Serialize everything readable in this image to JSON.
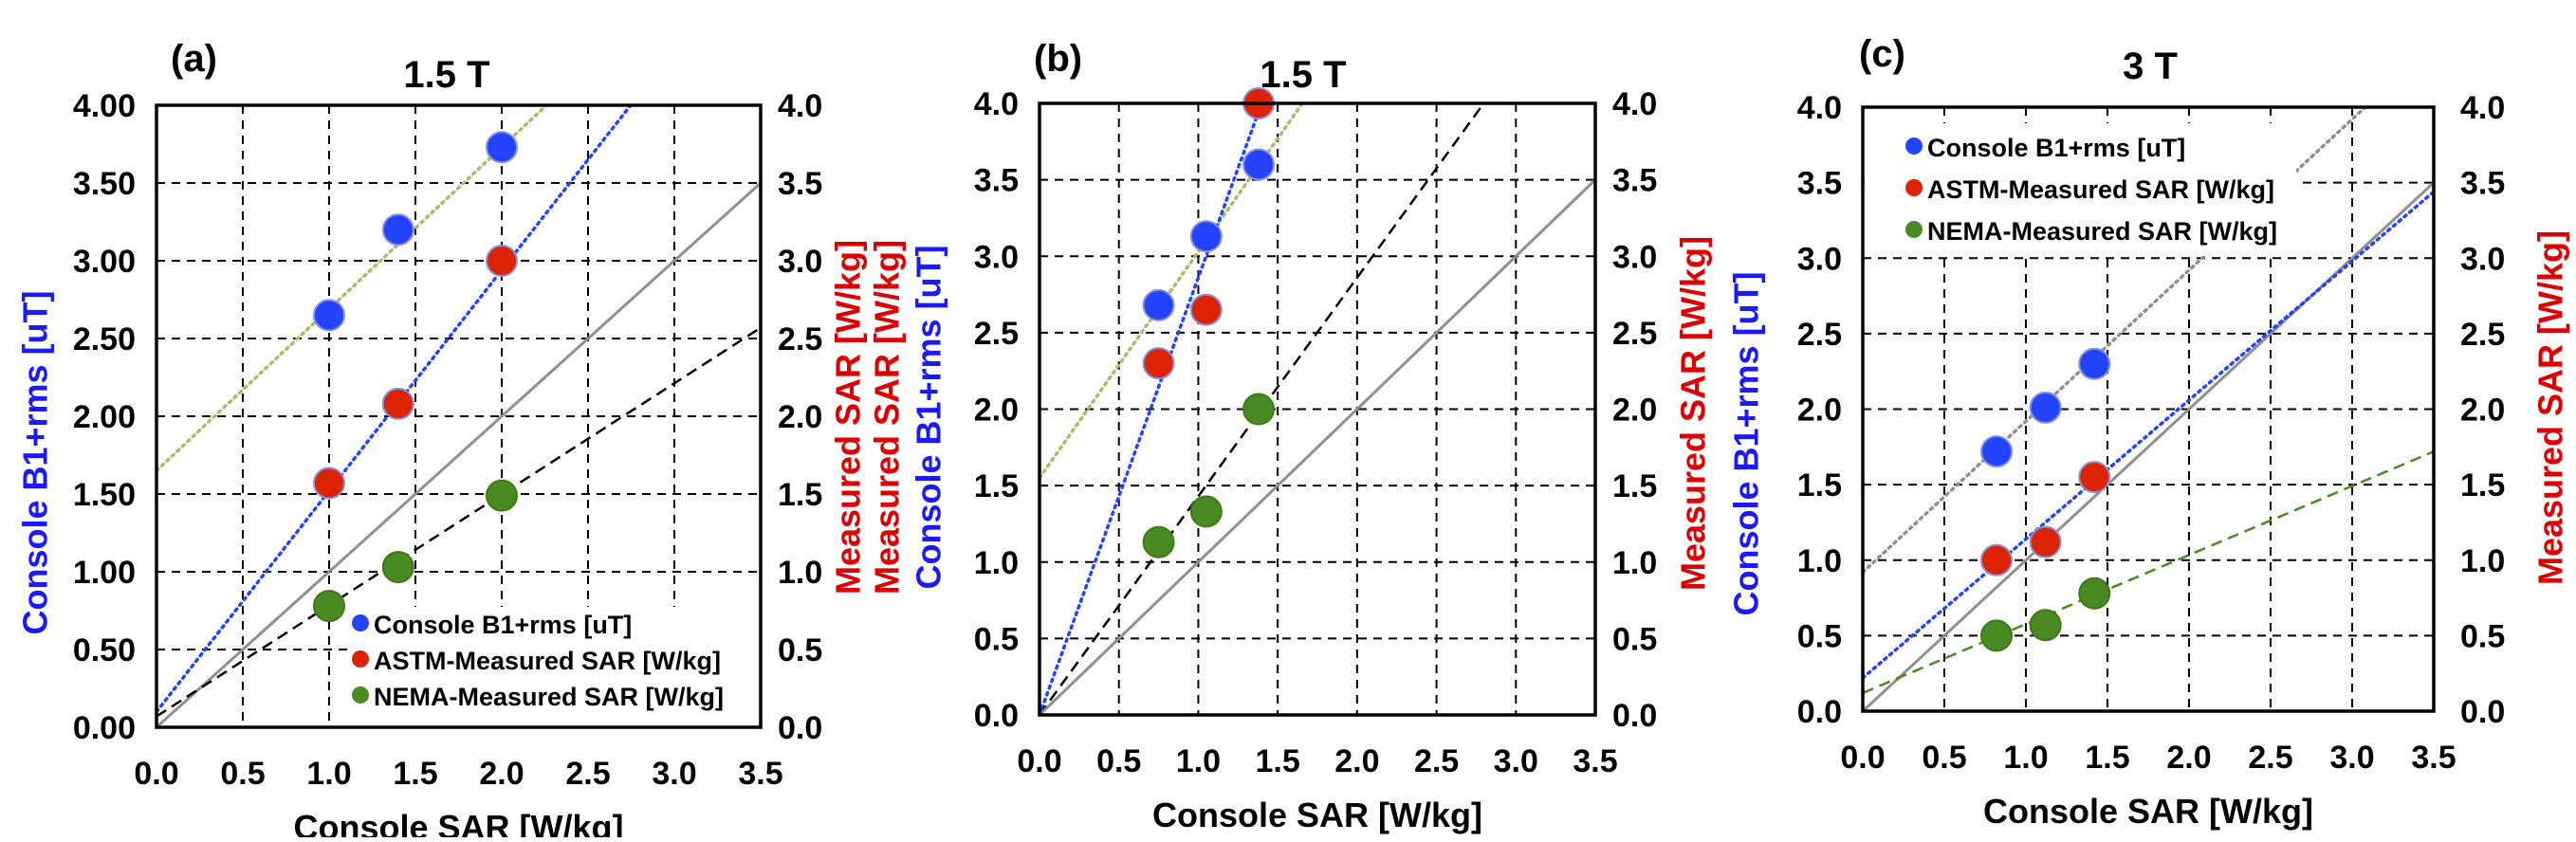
{
  "colors": {
    "blue": "#2244ff",
    "red": "#dd2200",
    "green": "#4a8a22",
    "gray": "#909090",
    "olive": "#a8bf6a",
    "axis_blue": "#1a1aff",
    "axis_red": "#dd0000"
  },
  "chart_data": [
    {
      "type": "scatter",
      "panel_label": "(a)",
      "title": "1.5 T",
      "xlabel": "Console SAR [W/kg]",
      "ylabel_left": [
        "Console B1+rms [uT]"
      ],
      "ylabel_right": "Measured SAR [W/kg]",
      "xlim": [
        0,
        3.5
      ],
      "ylim": [
        0,
        4
      ],
      "xticks": [
        "0.0",
        "0.5",
        "1.0",
        "1.5",
        "2.0",
        "2.5",
        "3.0",
        "3.5"
      ],
      "yticks_left": [
        "0.00",
        "0.50",
        "1.00",
        "1.50",
        "2.00",
        "2.50",
        "3.00",
        "3.50",
        "4.00"
      ],
      "yticks_right": [
        "0.0",
        "0.5",
        "1.0",
        "1.5",
        "2.0",
        "2.5",
        "3.0",
        "3.5",
        "4.0"
      ],
      "grid": true,
      "legend": "bottom-right",
      "series": [
        {
          "name": "Console B1+rms [uT]",
          "color": "blue",
          "x": [
            1.0,
            1.4,
            2.0
          ],
          "y": [
            2.65,
            3.2,
            3.73
          ]
        },
        {
          "name": "ASTM-Measured SAR [W/kg]",
          "color": "red",
          "x": [
            1.0,
            1.4,
            2.0
          ],
          "y": [
            1.57,
            2.08,
            3.0
          ]
        },
        {
          "name": "NEMA-Measured SAR [W/kg]",
          "color": "green",
          "x": [
            1.0,
            1.4,
            2.0
          ],
          "y": [
            0.78,
            1.03,
            1.49
          ]
        }
      ],
      "lines": [
        {
          "kind": "fit-console-b1",
          "style": "dotted",
          "color": "olive",
          "slope": 1.04,
          "intercept": 1.65
        },
        {
          "kind": "fit-astm",
          "style": "dotted",
          "color": "blue",
          "slope": 1.42,
          "intercept": 0.1
        },
        {
          "kind": "identity",
          "style": "solid",
          "color": "gray",
          "slope": 1.0,
          "intercept": 0
        },
        {
          "kind": "fit-nema",
          "style": "dashed",
          "color": "black",
          "slope": 0.714,
          "intercept": 0.07
        }
      ]
    },
    {
      "type": "scatter",
      "panel_label": "(b)",
      "title": "1.5 T",
      "xlabel": "Console SAR [W/kg]",
      "ylabel_left": [
        "Measured SAR [W/kg]",
        "Console B1+rms [uT]"
      ],
      "ylabel_right": "Measured SAR [W/kg]",
      "xlim": [
        0,
        3.5
      ],
      "ylim": [
        0,
        4
      ],
      "xticks": [
        "0.0",
        "0.5",
        "1.0",
        "1.5",
        "2.0",
        "2.5",
        "3.0",
        "3.5"
      ],
      "yticks_left": [
        "0.0",
        "0.5",
        "1.0",
        "1.5",
        "2.0",
        "2.5",
        "3.0",
        "3.5",
        "4.0"
      ],
      "yticks_right": [
        "0.0",
        "0.5",
        "1.0",
        "1.5",
        "2.0",
        "2.5",
        "3.0",
        "3.5",
        "4.0"
      ],
      "grid": true,
      "legend": "none",
      "series": [
        {
          "name": "Console B1+rms [uT]",
          "color": "blue",
          "x": [
            0.75,
            1.05,
            1.38
          ],
          "y": [
            2.68,
            3.13,
            3.6
          ]
        },
        {
          "name": "ASTM-Measured SAR [W/kg]",
          "color": "red",
          "x": [
            0.75,
            1.05,
            1.38
          ],
          "y": [
            2.3,
            2.65,
            4.0
          ]
        },
        {
          "name": "NEMA-Measured SAR [W/kg]",
          "color": "green",
          "x": [
            0.75,
            1.05,
            1.38
          ],
          "y": [
            1.13,
            1.33,
            2.0
          ]
        }
      ],
      "lines": [
        {
          "kind": "fit-console-b1",
          "style": "dotted",
          "color": "olive",
          "slope": 1.48,
          "intercept": 1.55
        },
        {
          "kind": "fit-astm",
          "style": "dotted",
          "color": "blue",
          "slope": 2.86,
          "intercept": 0
        },
        {
          "kind": "fit-nema",
          "style": "dashed",
          "color": "black",
          "slope": 1.43,
          "intercept": 0
        },
        {
          "kind": "identity",
          "style": "solid",
          "color": "gray",
          "slope": 1.0,
          "intercept": 0
        }
      ]
    },
    {
      "type": "scatter",
      "panel_label": "(c)",
      "title": "3 T",
      "xlabel": "Console SAR [W/kg]",
      "ylabel_left": [
        "Console B1+rms [uT]"
      ],
      "ylabel_right": "Measured SAR [W/kg]",
      "xlim": [
        0,
        3.5
      ],
      "ylim": [
        0,
        4
      ],
      "xticks": [
        "0.0",
        "0.5",
        "1.0",
        "1.5",
        "2.0",
        "2.5",
        "3.0",
        "3.5"
      ],
      "yticks_left": [
        "0.0",
        "0.5",
        "1.0",
        "1.5",
        "2.0",
        "2.5",
        "3.0",
        "3.5",
        "4.0"
      ],
      "yticks_right": [
        "0.0",
        "0.5",
        "1.0",
        "1.5",
        "2.0",
        "2.5",
        "3.0",
        "3.5",
        "4.0"
      ],
      "grid": true,
      "legend": "top-left",
      "series": [
        {
          "name": "Console B1+rms [uT]",
          "color": "blue",
          "x": [
            0.82,
            1.12,
            1.42
          ],
          "y": [
            1.72,
            2.01,
            2.3
          ]
        },
        {
          "name": "ASTM-Measured SAR [W/kg]",
          "color": "red",
          "x": [
            0.82,
            1.12,
            1.42
          ],
          "y": [
            1.0,
            1.12,
            1.55
          ]
        },
        {
          "name": "NEMA-Measured SAR [W/kg]",
          "color": "green",
          "x": [
            0.82,
            1.12,
            1.42
          ],
          "y": [
            0.5,
            0.57,
            0.78
          ]
        }
      ],
      "lines": [
        {
          "kind": "fit-console-b1",
          "style": "dotted",
          "color": "gray",
          "slope": 1.0,
          "intercept": 0.92
        },
        {
          "kind": "identity",
          "style": "solid",
          "color": "gray",
          "slope": 1.0,
          "intercept": 0
        },
        {
          "kind": "fit-astm",
          "style": "dotted",
          "color": "blue",
          "slope": 0.92,
          "intercept": 0.22
        },
        {
          "kind": "fit-nema",
          "style": "dashed",
          "color": "green",
          "slope": 0.457,
          "intercept": 0.12
        }
      ]
    }
  ]
}
